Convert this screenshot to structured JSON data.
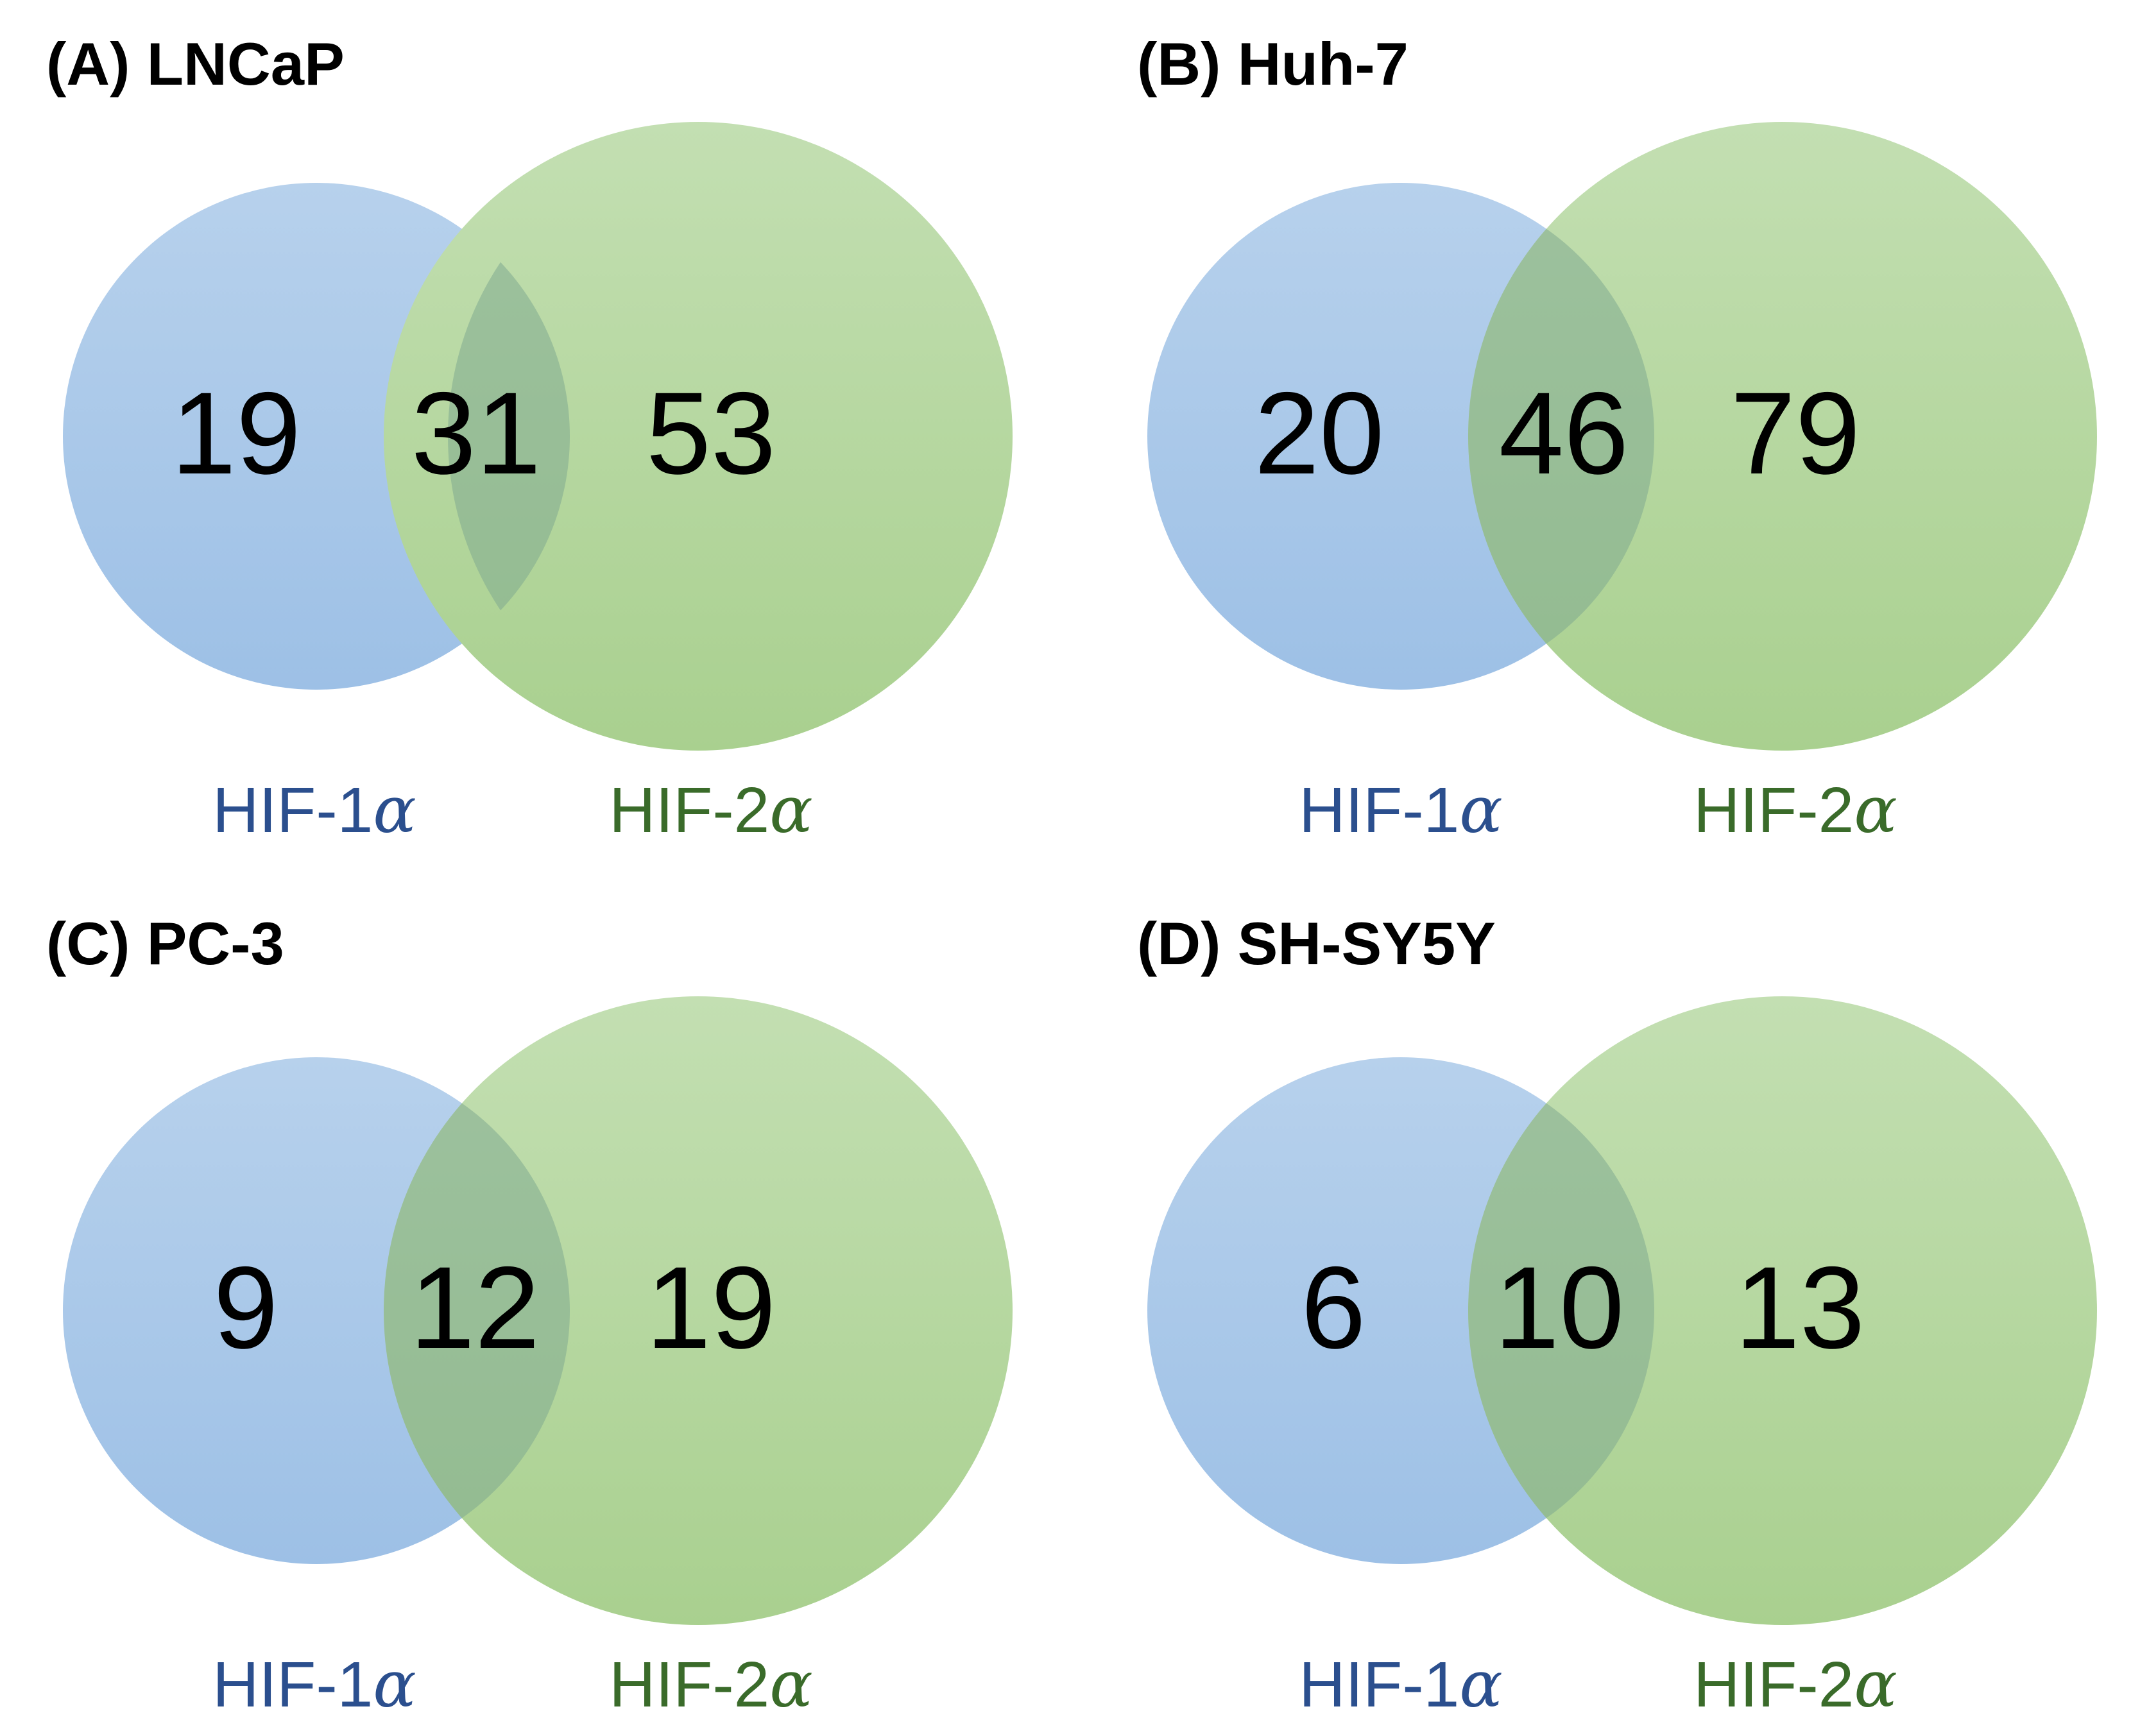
{
  "colors": {
    "set_a_fill_top": "#b7d1ec",
    "set_a_fill_bottom": "#9dc0e6",
    "set_b_fill_top": "#c3dfb2",
    "set_b_fill_bottom": "#a9d08f",
    "overlap_tint": "#7fa98f",
    "set_a_label": "#2b4f8e",
    "set_b_label": "#3a6b2a",
    "text": "#000000"
  },
  "panels": [
    {
      "title": "(A) LNCaP",
      "only_a": "19",
      "both": "31",
      "only_b": "53",
      "label_a": {
        "prefix": "HIF-1",
        "symbol": "α"
      },
      "label_b": {
        "prefix": "HIF-2",
        "symbol": "α"
      }
    },
    {
      "title": "(B) Huh-7",
      "only_a": "20",
      "both": "46",
      "only_b": "79",
      "label_a": {
        "prefix": "HIF-1",
        "symbol": "α"
      },
      "label_b": {
        "prefix": "HIF-2",
        "symbol": "α"
      }
    },
    {
      "title": "(C) PC-3",
      "only_a": "9",
      "both": "12",
      "only_b": "19",
      "label_a": {
        "prefix": "HIF-1",
        "symbol": "α"
      },
      "label_b": {
        "prefix": "HIF-2",
        "symbol": "α"
      }
    },
    {
      "title": "(D) SH-SY5Y",
      "only_a": "6",
      "both": "10",
      "only_b": "13",
      "label_a": {
        "prefix": "HIF-1",
        "symbol": "α"
      },
      "label_b": {
        "prefix": "HIF-2",
        "symbol": "α"
      }
    }
  ]
}
